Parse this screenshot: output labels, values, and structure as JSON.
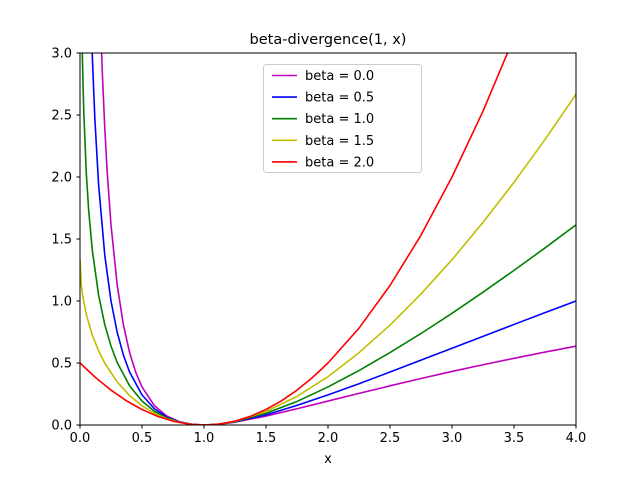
{
  "figure": {
    "background": "#ffffff"
  },
  "chart_data": {
    "type": "line",
    "title": "beta-divergence(1, x)",
    "xlabel": "x",
    "ylabel": "",
    "xlim": [
      0.0,
      4.0
    ],
    "ylim": [
      0.0,
      3.0
    ],
    "xticks": [
      0.0,
      0.5,
      1.0,
      1.5,
      2.0,
      2.5,
      3.0,
      3.5,
      4.0
    ],
    "xtick_labels": [
      "0.0",
      "0.5",
      "1.0",
      "1.5",
      "2.0",
      "2.5",
      "3.0",
      "3.5",
      "4.0"
    ],
    "yticks": [
      0.0,
      0.5,
      1.0,
      1.5,
      2.0,
      2.5,
      3.0
    ],
    "ytick_labels": [
      "0.0",
      "0.5",
      "1.0",
      "1.5",
      "2.0",
      "2.5",
      "3.0"
    ],
    "grid": false,
    "legend": {
      "position": "upper center-left",
      "border_color": "#cccccc",
      "background_color": "#ffffff"
    },
    "axes_color": "#000000",
    "series": [
      {
        "name": "beta = 0.0",
        "color": "#bf00bf",
        "formula": "1/x + ln(x) - 1",
        "points": [
          [
            0.16,
            3.417
          ],
          [
            0.18,
            2.841
          ],
          [
            0.2,
            2.391
          ],
          [
            0.22,
            2.031
          ],
          [
            0.25,
            1.614
          ],
          [
            0.3,
            1.129
          ],
          [
            0.35,
            0.807
          ],
          [
            0.4,
            0.584
          ],
          [
            0.45,
            0.424
          ],
          [
            0.5,
            0.307
          ],
          [
            0.6,
            0.156
          ],
          [
            0.7,
            0.072
          ],
          [
            0.8,
            0.027
          ],
          [
            0.9,
            0.006
          ],
          [
            1.0,
            0.0
          ],
          [
            1.1,
            0.004
          ],
          [
            1.25,
            0.023
          ],
          [
            1.5,
            0.072
          ],
          [
            1.75,
            0.131
          ],
          [
            2.0,
            0.193
          ],
          [
            2.25,
            0.255
          ],
          [
            2.5,
            0.316
          ],
          [
            2.75,
            0.375
          ],
          [
            3.0,
            0.432
          ],
          [
            3.25,
            0.486
          ],
          [
            3.5,
            0.538
          ],
          [
            3.75,
            0.588
          ],
          [
            4.0,
            0.636
          ]
        ]
      },
      {
        "name": "beta = 0.5",
        "color": "#0000ff",
        "formula": "2*sqrt(x) + 2/sqrt(x) - 4",
        "points": [
          [
            0.08,
            3.637
          ],
          [
            0.1,
            2.957
          ],
          [
            0.12,
            2.466
          ],
          [
            0.15,
            1.939
          ],
          [
            0.2,
            1.367
          ],
          [
            0.25,
            1.0
          ],
          [
            0.3,
            0.747
          ],
          [
            0.35,
            0.564
          ],
          [
            0.4,
            0.427
          ],
          [
            0.5,
            0.243
          ],
          [
            0.6,
            0.131
          ],
          [
            0.7,
            0.064
          ],
          [
            0.8,
            0.025
          ],
          [
            0.9,
            0.006
          ],
          [
            1.0,
            0.0
          ],
          [
            1.1,
            0.005
          ],
          [
            1.25,
            0.025
          ],
          [
            1.5,
            0.082
          ],
          [
            1.75,
            0.158
          ],
          [
            2.0,
            0.243
          ],
          [
            2.25,
            0.333
          ],
          [
            2.5,
            0.427
          ],
          [
            2.75,
            0.523
          ],
          [
            3.0,
            0.619
          ],
          [
            3.25,
            0.715
          ],
          [
            3.5,
            0.811
          ],
          [
            3.75,
            0.906
          ],
          [
            4.0,
            1.0
          ]
        ]
      },
      {
        "name": "beta = 1.0",
        "color": "#008000",
        "formula": "x - ln(x) - 1",
        "points": [
          [
            0.015,
            3.215
          ],
          [
            0.02,
            2.932
          ],
          [
            0.03,
            2.537
          ],
          [
            0.05,
            2.046
          ],
          [
            0.07,
            1.729
          ],
          [
            0.1,
            1.403
          ],
          [
            0.15,
            1.047
          ],
          [
            0.2,
            0.809
          ],
          [
            0.25,
            0.636
          ],
          [
            0.3,
            0.504
          ],
          [
            0.4,
            0.316
          ],
          [
            0.5,
            0.193
          ],
          [
            0.6,
            0.111
          ],
          [
            0.7,
            0.057
          ],
          [
            0.8,
            0.023
          ],
          [
            0.9,
            0.005
          ],
          [
            1.0,
            0.0
          ],
          [
            1.1,
            0.005
          ],
          [
            1.25,
            0.027
          ],
          [
            1.5,
            0.095
          ],
          [
            1.75,
            0.19
          ],
          [
            2.0,
            0.307
          ],
          [
            2.25,
            0.439
          ],
          [
            2.5,
            0.584
          ],
          [
            2.75,
            0.738
          ],
          [
            3.0,
            0.901
          ],
          [
            3.25,
            1.071
          ],
          [
            3.5,
            1.247
          ],
          [
            3.75,
            1.428
          ],
          [
            4.0,
            1.614
          ]
        ]
      },
      {
        "name": "beta = 1.5",
        "color": "#bfbf00",
        "formula": "4/3 + (2/3)*x^1.5 - 2*sqrt(x)",
        "points": [
          [
            0.0,
            1.333
          ],
          [
            0.01,
            1.134
          ],
          [
            0.02,
            1.052
          ],
          [
            0.05,
            0.894
          ],
          [
            0.1,
            0.722
          ],
          [
            0.15,
            0.598
          ],
          [
            0.2,
            0.498
          ],
          [
            0.3,
            0.347
          ],
          [
            0.4,
            0.237
          ],
          [
            0.5,
            0.155
          ],
          [
            0.6,
            0.094
          ],
          [
            0.7,
            0.05
          ],
          [
            0.8,
            0.022
          ],
          [
            0.9,
            0.005
          ],
          [
            1.0,
            0.0
          ],
          [
            1.1,
            0.005
          ],
          [
            1.25,
            0.029
          ],
          [
            1.5,
            0.109
          ],
          [
            1.75,
            0.231
          ],
          [
            2.0,
            0.39
          ],
          [
            2.25,
            0.583
          ],
          [
            2.5,
            0.806
          ],
          [
            2.75,
            1.057
          ],
          [
            3.0,
            1.333
          ],
          [
            3.25,
            1.634
          ],
          [
            3.5,
            1.957
          ],
          [
            3.75,
            2.302
          ],
          [
            4.0,
            2.667
          ]
        ]
      },
      {
        "name": "beta = 2.0",
        "color": "#ff0000",
        "formula": "(x-1)^2 / 2",
        "points": [
          [
            0.0,
            0.5
          ],
          [
            0.125,
            0.383
          ],
          [
            0.25,
            0.281
          ],
          [
            0.375,
            0.195
          ],
          [
            0.5,
            0.125
          ],
          [
            0.625,
            0.07
          ],
          [
            0.75,
            0.031
          ],
          [
            0.875,
            0.008
          ],
          [
            1.0,
            0.0
          ],
          [
            1.125,
            0.008
          ],
          [
            1.25,
            0.031
          ],
          [
            1.375,
            0.07
          ],
          [
            1.5,
            0.125
          ],
          [
            1.625,
            0.195
          ],
          [
            1.75,
            0.281
          ],
          [
            1.875,
            0.383
          ],
          [
            2.0,
            0.5
          ],
          [
            2.25,
            0.781
          ],
          [
            2.5,
            1.125
          ],
          [
            2.75,
            1.531
          ],
          [
            3.0,
            2.0
          ],
          [
            3.25,
            2.531
          ],
          [
            3.5,
            3.125
          ],
          [
            3.6,
            3.38
          ]
        ]
      }
    ]
  }
}
